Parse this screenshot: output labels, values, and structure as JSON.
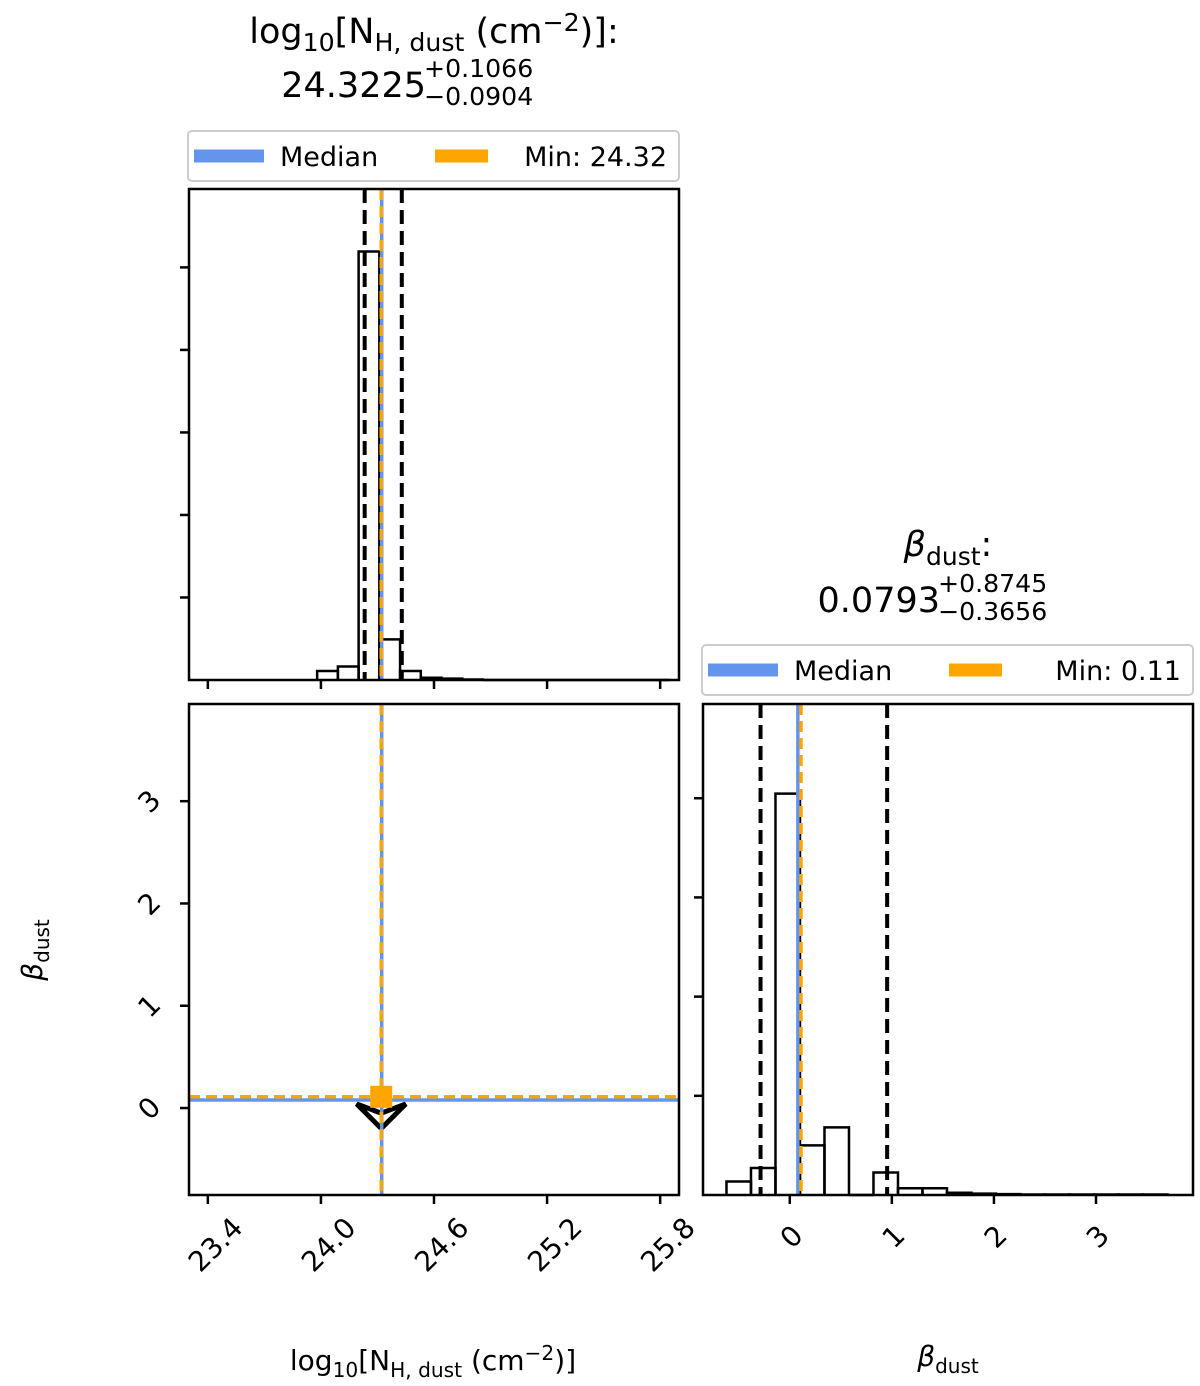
{
  "colors": {
    "median": "#6495ED",
    "min": "#FFA500",
    "hist": "#000000",
    "frame": "#000000"
  },
  "chart_data": [
    {
      "type": "histogram",
      "parameter": "nh",
      "title_name": "log10[NH, dust (cm−2)]:",
      "title_value": "24.3225",
      "title_err_plus": "+0.1066",
      "title_err_minus": "−0.0904",
      "xlabel": "log10[NH, dust (cm−2)]",
      "xlim": [
        23.3,
        25.9
      ],
      "xticks": [
        23.4,
        24.0,
        24.6,
        25.2,
        25.8
      ],
      "ylim": [
        0,
        1.0
      ],
      "bin_edges": [
        23.98,
        24.09,
        24.2,
        24.31,
        24.42,
        24.53,
        24.64,
        24.75,
        24.86,
        24.97,
        25.08,
        25.19,
        25.3,
        25.41,
        25.52,
        25.63,
        25.74,
        25.85
      ],
      "counts": [
        0.02,
        0.03,
        0.95,
        0.09,
        0.02,
        0.005,
        0.003,
        0.001,
        0,
        0,
        0,
        0,
        0,
        0,
        0,
        0,
        0
      ],
      "median": 24.3225,
      "quantile_low": 24.2321,
      "quantile_high": 24.4291,
      "min": 24.32,
      "legend": {
        "median_label": "Median",
        "min_label": "Min: 24.32",
        "placement": "above"
      }
    },
    {
      "type": "histogram",
      "parameter": "beta",
      "title_name": "βdust:",
      "title_value": "0.0793",
      "title_err_plus": "+0.8745",
      "title_err_minus": "−0.3656",
      "xlabel": "βdust",
      "xlim": [
        -0.85,
        3.95
      ],
      "xticks": [
        0,
        1,
        2,
        3
      ],
      "ylim": [
        0,
        1.0
      ],
      "bin_edges": [
        -0.62,
        -0.38,
        -0.14,
        0.1,
        0.34,
        0.58,
        0.82,
        1.06,
        1.3,
        1.54,
        1.78,
        2.02,
        2.26,
        2.5,
        2.74,
        2.98,
        3.22,
        3.46,
        3.7
      ],
      "counts": [
        0.03,
        0.06,
        0.89,
        0.11,
        0.15,
        0.0,
        0.05,
        0.015,
        0.015,
        0.005,
        0.003,
        0.002,
        0.001,
        0.001,
        0.001,
        0.001,
        0.001,
        0.001
      ],
      "median": 0.0793,
      "quantile_low": -0.2863,
      "quantile_high": 0.9538,
      "min": 0.11,
      "legend": {
        "median_label": "Median",
        "min_label": "Min: 0.11",
        "placement": "above"
      }
    },
    {
      "type": "scatter",
      "parameter_x": "nh",
      "parameter_y": "beta",
      "xlabel": "log10[NH, dust (cm−2)]",
      "ylabel": "βdust",
      "xlim": [
        23.3,
        25.9
      ],
      "ylim": [
        -0.85,
        3.95
      ],
      "xticks": [
        23.4,
        24.0,
        24.6,
        25.2,
        25.8
      ],
      "yticks": [
        0,
        1,
        2,
        3
      ],
      "median_point": [
        24.3225,
        0.0793
      ],
      "min_point": [
        24.32,
        0.11
      ],
      "contour_points": [
        [
          24.32,
          -0.05
        ],
        [
          24.45,
          0.04
        ],
        [
          24.32,
          -0.2
        ],
        [
          24.19,
          0.04
        ]
      ]
    }
  ]
}
